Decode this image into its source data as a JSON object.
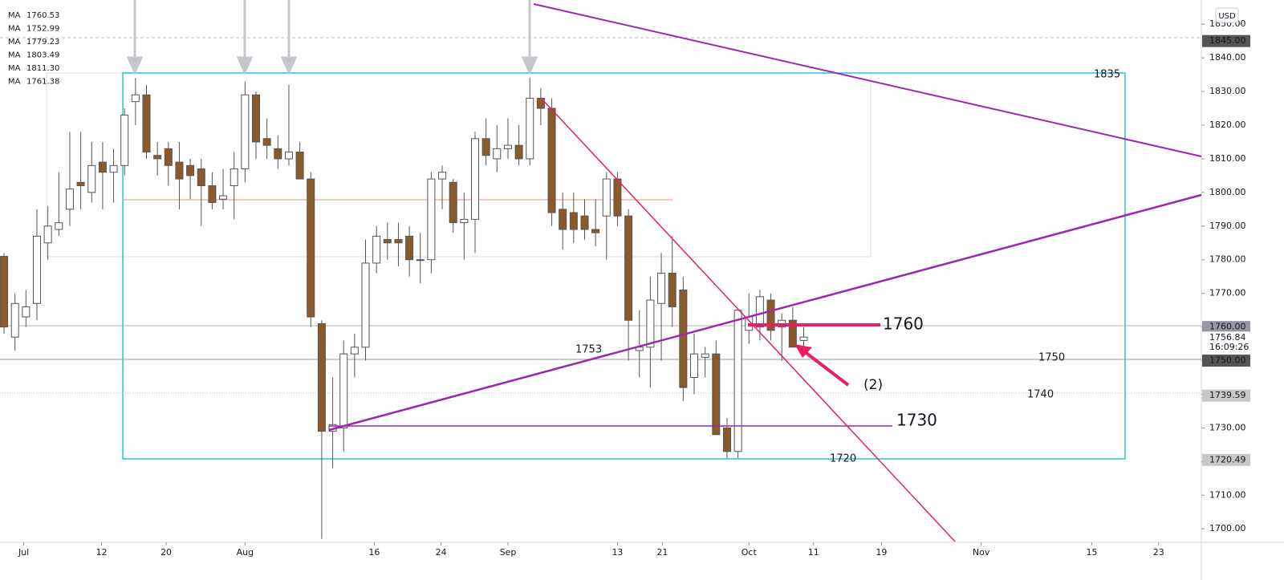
{
  "chart_data": {
    "type": "candlestick",
    "open": [
      1781,
      1757,
      1763,
      1767,
      1785,
      1789,
      1795,
      1803,
      1800,
      1809,
      1806,
      1808,
      1827,
      1829,
      1811,
      1813,
      1809,
      1808,
      1807,
      1802,
      1798,
      1802,
      1807,
      1829,
      1816,
      1813,
      1810,
      1812,
      1804,
      1761,
      1729,
      1730,
      1752,
      1754,
      1779,
      1786,
      1786,
      1787,
      1780,
      1780,
      1804,
      1803,
      1791,
      1792,
      1816,
      1810,
      1813,
      1814,
      1810,
      1828,
      1825,
      1795,
      1794,
      1793,
      1789,
      1793,
      1804,
      1793,
      1753,
      1754,
      1767,
      1776,
      1771,
      1745,
      1751,
      1752,
      1730,
      1723,
      1759,
      1760,
      1768,
      1760,
      1762,
      1756
    ],
    "high": [
      1782,
      1770,
      1771,
      1795,
      1796,
      1806,
      1818,
      1818,
      1815,
      1815,
      1813,
      1825,
      1834,
      1832,
      1815,
      1815,
      1815,
      1810,
      1810,
      1806,
      1807,
      1812,
      1833,
      1830,
      1822,
      1817,
      1832,
      1815,
      1806,
      1762,
      1745,
      1756,
      1758,
      1786,
      1790,
      1791,
      1791,
      1790,
      1788,
      1806,
      1808,
      1804,
      1800,
      1818,
      1822,
      1820,
      1822,
      1820,
      1834,
      1831,
      1828,
      1800,
      1800,
      1798,
      1798,
      1806,
      1806,
      1795,
      1765,
      1775,
      1782,
      1787,
      1775,
      1758,
      1754,
      1756,
      1733,
      1765,
      1770,
      1771,
      1770,
      1764,
      1766,
      1760
    ],
    "low": [
      1758,
      1753,
      1760,
      1762,
      1780,
      1787,
      1790,
      1795,
      1797,
      1795,
      1797,
      1805,
      1820,
      1810,
      1805,
      1802,
      1795,
      1798,
      1790,
      1795,
      1795,
      1792,
      1803,
      1810,
      1810,
      1807,
      1808,
      1804,
      1760,
      1697,
      1718,
      1723,
      1745,
      1750,
      1776,
      1780,
      1778,
      1775,
      1773,
      1776,
      1795,
      1788,
      1780,
      1782,
      1808,
      1806,
      1810,
      1808,
      1808,
      1820,
      1790,
      1783,
      1785,
      1786,
      1784,
      1780,
      1790,
      1750,
      1745,
      1742,
      1750,
      1760,
      1738,
      1740,
      1745,
      1728,
      1721,
      1721,
      1755,
      1756,
      1756,
      1750,
      1754,
      1753
    ],
    "close": [
      1760,
      1767,
      1766,
      1787,
      1790,
      1791,
      1801,
      1802,
      1808,
      1806,
      1808,
      1823,
      1829,
      1812,
      1810,
      1808,
      1804,
      1805,
      1802,
      1797,
      1799,
      1807,
      1829,
      1815,
      1814,
      1810,
      1812,
      1804,
      1763,
      1729,
      1731,
      1752,
      1754,
      1779,
      1787,
      1785,
      1785,
      1780,
      1780,
      1804,
      1806,
      1791,
      1792,
      1816,
      1811,
      1813,
      1814,
      1810,
      1828,
      1825,
      1794,
      1789,
      1789,
      1789,
      1788,
      1804,
      1793,
      1762,
      1754,
      1768,
      1776,
      1766,
      1742,
      1752,
      1752,
      1728,
      1723,
      1765,
      1763,
      1769,
      1759,
      1762,
      1754,
      1757
    ],
    "up_color": "#ffffff",
    "down_color": "#8b5a2b",
    "wick_color": "#555555",
    "ylim": [
      1696.0,
      1857.2
    ],
    "yticks": [
      {
        "value": 1700,
        "label": "1700.00"
      },
      {
        "value": 1710,
        "label": "1710.00"
      },
      {
        "value": 1720,
        "label": "1720.00"
      },
      {
        "value": 1730,
        "label": "1730.00"
      },
      {
        "value": 1740,
        "label": "1740.00"
      },
      {
        "value": 1750,
        "label": "1750.00"
      },
      {
        "value": 1760,
        "label": "1760.00"
      },
      {
        "value": 1770,
        "label": "1770.00"
      },
      {
        "value": 1780,
        "label": "1780.00"
      },
      {
        "value": 1790,
        "label": "1790.00"
      },
      {
        "value": 1800,
        "label": "1800.00"
      },
      {
        "value": 1810,
        "label": "1810.00"
      },
      {
        "value": 1820,
        "label": "1820.00"
      },
      {
        "value": 1830,
        "label": "1830.00"
      },
      {
        "value": 1840,
        "label": "1840.00"
      },
      {
        "value": 1850,
        "label": "1850.00"
      }
    ],
    "xlim": [
      -0.37,
      109.3
    ],
    "xticks": [
      {
        "value": 1.8,
        "label": "Jul"
      },
      {
        "value": 8.9,
        "label": "12"
      },
      {
        "value": 14.8,
        "label": "20"
      },
      {
        "value": 22,
        "label": "Aug"
      },
      {
        "value": 33.8,
        "label": "16"
      },
      {
        "value": 39.9,
        "label": "24"
      },
      {
        "value": 46,
        "label": "Sep"
      },
      {
        "value": 56,
        "label": "13"
      },
      {
        "value": 60.1,
        "label": "21"
      },
      {
        "value": 68,
        "label": "Oct"
      },
      {
        "value": 73.9,
        "label": "11"
      },
      {
        "value": 80.1,
        "label": "19"
      },
      {
        "value": 89.2,
        "label": "Nov"
      },
      {
        "value": 99.3,
        "label": "15"
      },
      {
        "value": 105.4,
        "label": "23"
      }
    ],
    "currency": "USD",
    "badges": [
      {
        "value": 1845,
        "label": "1845.00",
        "color": "#555555"
      },
      {
        "value": 1760,
        "label": "1760.00",
        "color": "#9598a1"
      },
      {
        "value": 1756.84,
        "label": "1756.84",
        "color": "#ffffff",
        "countdown": "16:09:26"
      },
      {
        "value": 1750,
        "label": "1750.00",
        "color": "#555555"
      },
      {
        "value": 1739.59,
        "label": "1739.59",
        "color": "#c8c8c8"
      },
      {
        "value": 1720.49,
        "label": "1720.49",
        "color": "#c8c8c8"
      }
    ],
    "ma_legend": [
      {
        "name": "MA",
        "value": "1760.53",
        "color": "#e91e63"
      },
      {
        "name": "MA",
        "value": "1752.99",
        "color": "#2962ff"
      },
      {
        "name": "MA",
        "value": "1779.23",
        "color": "#b2b5be"
      },
      {
        "name": "MA",
        "value": "1803.49",
        "color": "#9c27b0"
      },
      {
        "name": "MA",
        "value": "1811.30",
        "color": "#4caf50"
      },
      {
        "name": "MA",
        "value": "1761.38",
        "color": "#b2b5be"
      }
    ],
    "annotations": [
      {
        "text": "1835",
        "color": "#00acc1"
      },
      {
        "text": "1760",
        "color": "#e91e63"
      },
      {
        "text": "1730",
        "color": "#e91e63"
      },
      {
        "text": "1720",
        "color": "#e91e63"
      },
      {
        "text": "1753",
        "color": "#43a047"
      },
      {
        "text": "1750",
        "color": "#2962ff"
      },
      {
        "text": "1740",
        "color": "#2962ff"
      },
      {
        "text": "(2)",
        "color": "#e91e63"
      }
    ]
  }
}
